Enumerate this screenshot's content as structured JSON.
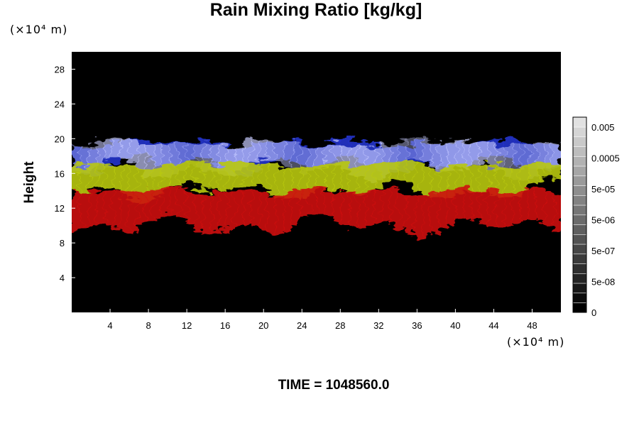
{
  "chart_data": {
    "type": "heatmap",
    "title": "Rain Mixing Ratio [kg/kg]",
    "ylabel": "Height",
    "xunit": "(×10⁴ m)",
    "yunit": "(×10⁴ m)",
    "xlim": [
      0,
      51
    ],
    "ylim": [
      0,
      30
    ],
    "x_ticks": [
      "4",
      "8",
      "12",
      "16",
      "20",
      "24",
      "28",
      "32",
      "36",
      "40",
      "44",
      "48"
    ],
    "y_ticks": [
      "4",
      "8",
      "12",
      "16",
      "20",
      "24",
      "28"
    ],
    "background_color": "#000000",
    "colorbar": {
      "labels": [
        "0.005",
        "0.0005",
        "5e-05",
        "5e-06",
        "5e-07",
        "5e-08",
        "0"
      ],
      "levels": 20
    },
    "layers": [
      {
        "color": "#2233cc",
        "y_range": [
          17,
          19.5
        ]
      },
      {
        "color": "#c8ccff",
        "y_range": [
          16.5,
          19.5
        ]
      },
      {
        "color": "#b8c810",
        "y_range": [
          14,
          17
        ]
      },
      {
        "color": "#cc1111",
        "y_range": [
          10,
          14
        ]
      }
    ]
  },
  "footer": {
    "time_label": "TIME = 1048560.0"
  }
}
